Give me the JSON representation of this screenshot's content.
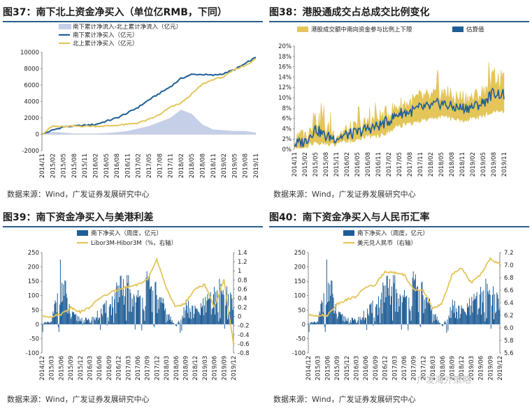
{
  "charts": [
    {
      "title": "图37：南下北上资金净买入（单位亿RMB，下同）",
      "source": "数据来源：Wind，广发证券发展研究中心",
      "colors": {
        "area": "#c6cfe8",
        "s1": "#1f5d96",
        "s2": "#e3c55a"
      },
      "chart_data": {
        "type": "line",
        "legend": [
          "南下累计净流入-北上累计净流入（亿元）",
          "南下累计净买入（亿元）",
          "北上累计净买入（亿元）"
        ],
        "ylim": [
          -2000,
          10000
        ],
        "yticks": [
          "10000",
          "8000",
          "6000",
          "4000",
          "2000",
          "0",
          "-2000"
        ],
        "xticks": [
          "2014/11",
          "2015/02",
          "2015/05",
          "2015/08",
          "2015/11",
          "2016/02",
          "2016/05",
          "2016/08",
          "2016/11",
          "2017/02",
          "2017/05",
          "2017/08",
          "2017/11",
          "2018/02",
          "2018/05",
          "2018/08",
          "2018/11",
          "2019/02",
          "2019/05",
          "2019/08",
          "2019/11"
        ],
        "x": [
          0,
          1,
          2,
          3,
          4,
          5,
          6,
          7,
          8,
          9,
          10,
          11,
          12,
          13,
          14,
          15,
          16,
          17,
          18,
          19,
          20
        ],
        "series": [
          {
            "name": "南下累计净流入-北上累计净流入（亿元）",
            "style": "area",
            "values": [
              0,
              300,
              200,
              100,
              100,
              100,
              150,
              250,
              400,
              700,
              1000,
              1500,
              2000,
              3000,
              2500,
              1200,
              600,
              500,
              400,
              400,
              200
            ]
          },
          {
            "name": "南下累计净买入（亿元）",
            "style": "line",
            "values": [
              0,
              500,
              900,
              1000,
              1100,
              1200,
              1600,
              2000,
              2600,
              3300,
              4200,
              5000,
              5800,
              6800,
              7300,
              7300,
              7200,
              7400,
              7900,
              8600,
              9400
            ]
          },
          {
            "name": "北上累计净买入（亿元）",
            "style": "line",
            "values": [
              0,
              1000,
              900,
              1000,
              1000,
              1000,
              1000,
              1100,
              1200,
              1400,
              1800,
              2400,
              3300,
              3800,
              4900,
              6100,
              6700,
              7000,
              7900,
              8400,
              9200
            ]
          }
        ]
      }
    },
    {
      "title": "图38：港股通成交占总成交比例变化",
      "source": "数据来源：Wind，广发证券发展研究中心",
      "colors": {
        "band": "#e3c55a",
        "line": "#1f5d96"
      },
      "chart_data": {
        "type": "area",
        "legend": [
          "港股成交额中南向资金参与比例上下限",
          "估算值"
        ],
        "ylim": [
          0,
          20
        ],
        "yticks": [
          "20%",
          "18%",
          "16%",
          "14%",
          "12%",
          "10%",
          "8%",
          "6%",
          "4%",
          "2%",
          "0%"
        ],
        "xticks": [
          "2014/11",
          "2015/02",
          "2015/05",
          "2015/08",
          "2015/11",
          "2016/02",
          "2016/05",
          "2016/08",
          "2016/11",
          "2017/02",
          "2017/05",
          "2017/08",
          "2017/11",
          "2018/02",
          "2018/05",
          "2018/08",
          "2018/11",
          "2019/02",
          "2019/05",
          "2019/08",
          "2019/11"
        ],
        "x": [
          0,
          1,
          2,
          3,
          4,
          5,
          6,
          7,
          8,
          9,
          10,
          11,
          12,
          13,
          14,
          15,
          16,
          17,
          18,
          19,
          20
        ],
        "series": [
          {
            "name": "上限",
            "values": [
              1.5,
              2.5,
              6,
              4,
              3,
              3.5,
              4,
              5,
              6,
              7,
              8.5,
              9,
              10,
              10,
              11,
              10,
              10,
              10,
              11,
              14,
              13
            ]
          },
          {
            "name": "下限",
            "values": [
              0.5,
              0.8,
              2,
              1.5,
              1.5,
              2,
              2.5,
              3,
              3,
              4,
              5,
              5.5,
              6,
              6.5,
              7,
              6.5,
              6,
              6.5,
              7,
              8,
              8
            ]
          },
          {
            "name": "估算值",
            "values": [
              1,
              1.5,
              4,
              2.5,
              2.2,
              2.8,
              3.2,
              4,
              4.5,
              5.5,
              7,
              7.2,
              8,
              8.2,
              9,
              8.2,
              8,
              8.2,
              9,
              11,
              10.5
            ]
          }
        ]
      }
    },
    {
      "title": "图39：南下资金净买入与美港利差",
      "source": "数据来源：Wind，广发证券发展研究中心",
      "colors": {
        "bar": "#1f5d96",
        "line": "#e3c55a"
      },
      "chart_data": {
        "type": "bar",
        "legend": [
          "南下净买入（周度，亿元）",
          "Libor3M-Hibor3M（%，右轴）"
        ],
        "ylim": [
          -100,
          250
        ],
        "y2lim": [
          -0.8,
          1.4
        ],
        "yticks": [
          "250",
          "200",
          "150",
          "100",
          "50",
          "0",
          "-50",
          "-100"
        ],
        "y2ticks": [
          "1.4",
          "1.2",
          "1",
          "0.8",
          "0.6",
          "0.4",
          "0.2",
          "0",
          "-0.2",
          "-0.4",
          "-0.6",
          "-0.8"
        ],
        "xticks": [
          "2014/12",
          "2015/03",
          "2015/06",
          "2015/09",
          "2015/12",
          "2016/03",
          "2016/06",
          "2016/09",
          "2016/12",
          "2017/03",
          "2017/06",
          "2017/09",
          "2017/12",
          "2018/03",
          "2018/06",
          "2018/09",
          "2018/12",
          "2019/03",
          "2019/06",
          "2019/09",
          "2019/12"
        ],
        "x": [
          0,
          1,
          2,
          3,
          4,
          5,
          6,
          7,
          8,
          9,
          10,
          11,
          12,
          13,
          14,
          15,
          16,
          17,
          18,
          19,
          20
        ],
        "series": [
          {
            "name": "南下净买入（周度，亿元）",
            "axis": "left",
            "values": [
              5,
              10,
              200,
              40,
              25,
              15,
              45,
              75,
              135,
              150,
              100,
              155,
              120,
              50,
              -10,
              75,
              55,
              80,
              110,
              150,
              70
            ]
          },
          {
            "name": "Libor3M-Hibor3M（%，右轴）",
            "axis": "right",
            "values": [
              0,
              0,
              0.05,
              0.2,
              0.1,
              0.2,
              0.4,
              0.5,
              0.6,
              0.65,
              0.7,
              0.8,
              1.25,
              0.6,
              0.2,
              0.3,
              0.6,
              0.7,
              0.2,
              0.8,
              -0.6
            ]
          }
        ]
      }
    },
    {
      "title": "图40：南下资金净买入与人民币汇率",
      "source": "数据来源：Wind，广发证券发展研究中心",
      "colors": {
        "bar": "#1f5d96",
        "line": "#e3c55a"
      },
      "chart_data": {
        "type": "bar",
        "legend": [
          "南下净买入（周度，亿元）",
          "美元兑人民币（右轴）"
        ],
        "ylim": [
          -100,
          250
        ],
        "y2lim": [
          5.6,
          7.2
        ],
        "yticks": [
          "250",
          "200",
          "150",
          "100",
          "50",
          "0",
          "-50",
          "-100"
        ],
        "y2ticks": [
          "7.2",
          "7.0",
          "6.8",
          "6.6",
          "6.4",
          "6.2",
          "6.0",
          "5.8",
          "5.6"
        ],
        "xticks": [
          "2014/12",
          "2015/03",
          "2015/06",
          "2015/09",
          "2015/12",
          "2016/03",
          "2016/06",
          "2016/09",
          "2016/12",
          "2017/03",
          "2017/06",
          "2017/09",
          "2017/12",
          "2018/03",
          "2018/06",
          "2018/09",
          "2018/12",
          "2019/03",
          "2019/06",
          "2019/09",
          "2019/12"
        ],
        "x": [
          0,
          1,
          2,
          3,
          4,
          5,
          6,
          7,
          8,
          9,
          10,
          11,
          12,
          13,
          14,
          15,
          16,
          17,
          18,
          19,
          20
        ],
        "series": [
          {
            "name": "南下净买入（周度，亿元）",
            "axis": "left",
            "values": [
              5,
              10,
              200,
              40,
              25,
              15,
              45,
              75,
              135,
              150,
              100,
              155,
              120,
              50,
              -10,
              75,
              55,
              80,
              110,
              150,
              70
            ]
          },
          {
            "name": "美元兑人民币（右轴）",
            "axis": "right",
            "values": [
              6.2,
              6.2,
              6.2,
              6.38,
              6.45,
              6.5,
              6.65,
              6.68,
              6.9,
              6.88,
              6.85,
              6.6,
              6.6,
              6.3,
              6.4,
              6.85,
              6.95,
              6.72,
              6.85,
              7.1,
              7.02
            ]
          }
        ]
      }
    }
  ],
  "watermark": "广发海外策略"
}
